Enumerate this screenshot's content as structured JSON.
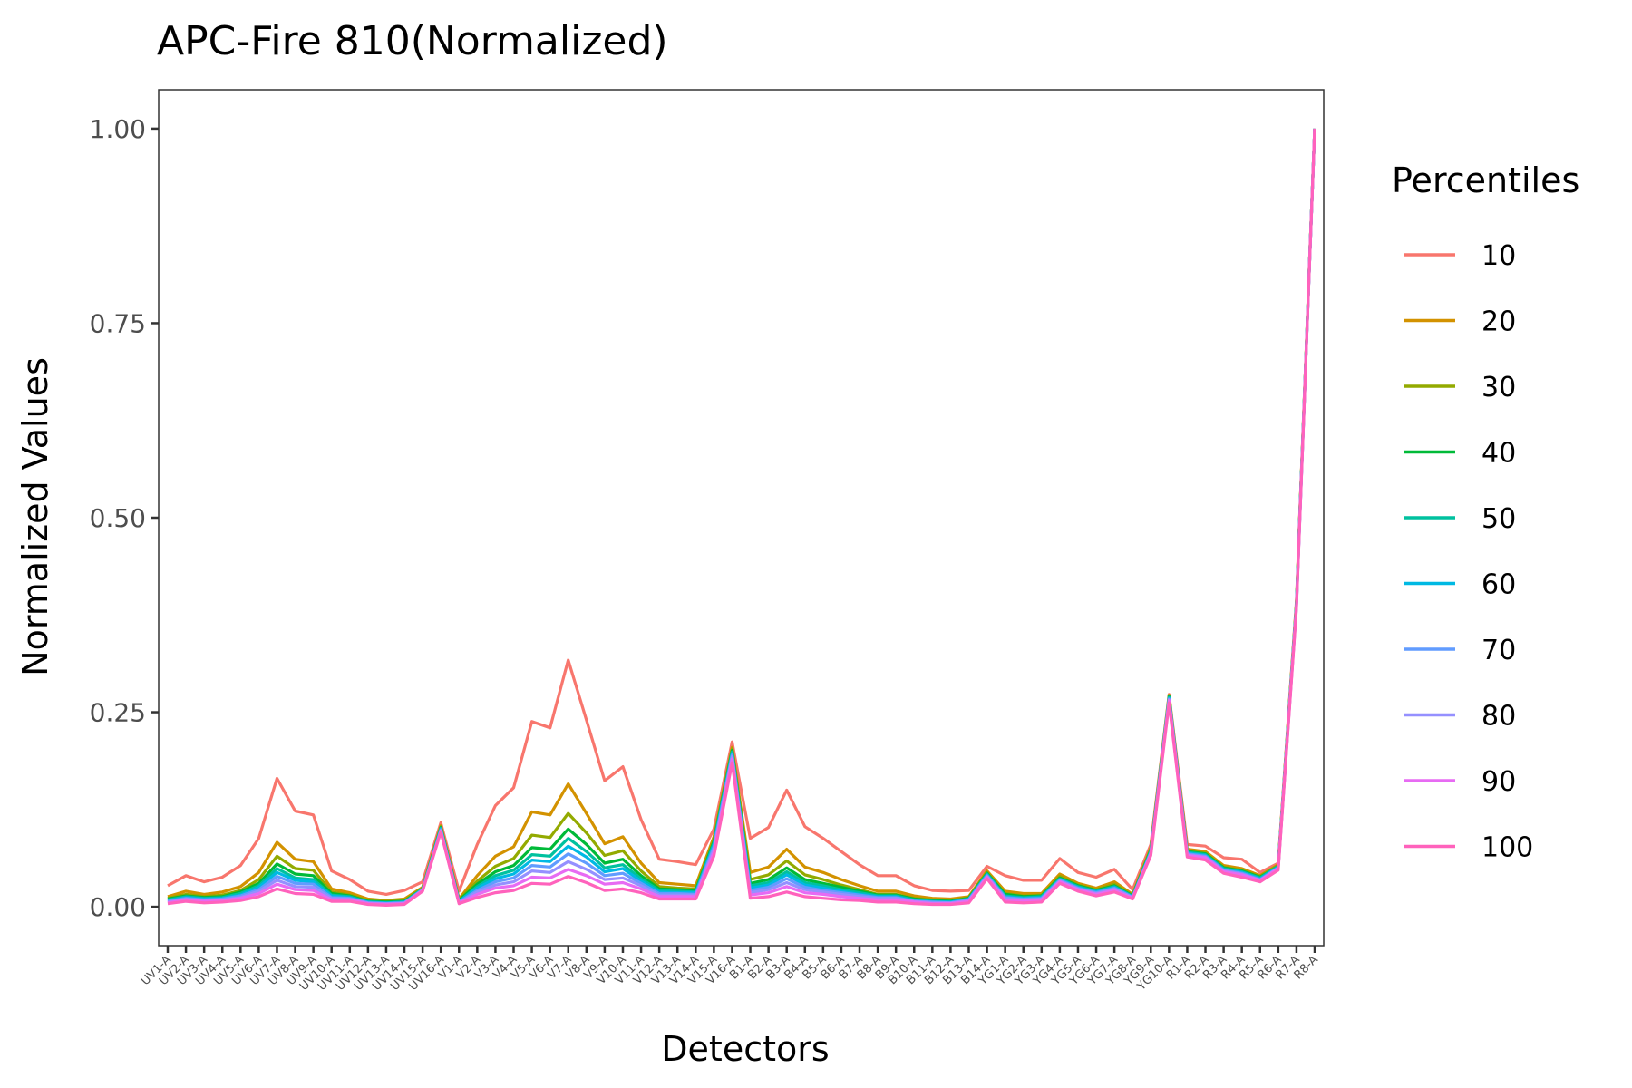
{
  "chart_data": {
    "type": "line",
    "title": "APC-Fire 810(Normalized)",
    "xlabel": "Detectors",
    "ylabel": "Normalized Values",
    "ylim": [
      -0.05,
      1.05
    ],
    "yticks": [
      0,
      0.25,
      0.5,
      0.75,
      1.0
    ],
    "ytick_labels": [
      "0.00",
      "0.25",
      "0.50",
      "0.75",
      "1.00"
    ],
    "grid": false,
    "legend_position": "right",
    "legend_title": "Percentiles",
    "categories": [
      "UV1-A",
      "UV2-A",
      "UV3-A",
      "UV4-A",
      "UV5-A",
      "UV6-A",
      "UV7-A",
      "UV8-A",
      "UV9-A",
      "UV10-A",
      "UV11-A",
      "UV12-A",
      "UV13-A",
      "UV14-A",
      "UV15-A",
      "UV16-A",
      "V1-A",
      "V2-A",
      "V3-A",
      "V4-A",
      "V5-A",
      "V6-A",
      "V7-A",
      "V8-A",
      "V9-A",
      "V10-A",
      "V11-A",
      "V12-A",
      "V13-A",
      "V14-A",
      "V15-A",
      "V16-A",
      "B1-A",
      "B2-A",
      "B3-A",
      "B4-A",
      "B5-A",
      "B6-A",
      "B7-A",
      "B8-A",
      "B9-A",
      "B10-A",
      "B11-A",
      "B12-A",
      "B13-A",
      "B14-A",
      "YG1-A",
      "YG2-A",
      "YG3-A",
      "YG4-A",
      "YG5-A",
      "YG6-A",
      "YG7-A",
      "YG8-A",
      "YG9-A",
      "YG10-A",
      "R1-A",
      "R2-A",
      "R3-A",
      "R4-A",
      "R5-A",
      "R6-A",
      "R7-A",
      "R8-A"
    ],
    "series": [
      {
        "name": "10",
        "color": "#F8766D",
        "values": [
          0.027,
          0.04,
          0.032,
          0.038,
          0.053,
          0.088,
          0.165,
          0.123,
          0.118,
          0.046,
          0.035,
          0.02,
          0.016,
          0.021,
          0.032,
          0.108,
          0.02,
          0.08,
          0.13,
          0.153,
          0.238,
          0.23,
          0.317,
          0.24,
          0.162,
          0.18,
          0.112,
          0.061,
          0.058,
          0.054,
          0.1,
          0.212,
          0.088,
          0.102,
          0.15,
          0.103,
          0.088,
          0.071,
          0.054,
          0.04,
          0.04,
          0.027,
          0.021,
          0.02,
          0.021,
          0.052,
          0.04,
          0.034,
          0.034,
          0.062,
          0.044,
          0.038,
          0.048,
          0.022,
          0.08,
          0.273,
          0.08,
          0.078,
          0.063,
          0.061,
          0.044,
          0.056,
          0.395,
          1.0
        ]
      },
      {
        "name": "20",
        "color": "#D39200",
        "values": [
          0.013,
          0.02,
          0.016,
          0.019,
          0.026,
          0.044,
          0.083,
          0.061,
          0.058,
          0.023,
          0.018,
          0.01,
          0.008,
          0.01,
          0.025,
          0.104,
          0.01,
          0.04,
          0.065,
          0.077,
          0.122,
          0.118,
          0.158,
          0.12,
          0.081,
          0.09,
          0.056,
          0.031,
          0.029,
          0.027,
          0.09,
          0.205,
          0.044,
          0.051,
          0.074,
          0.051,
          0.044,
          0.035,
          0.027,
          0.02,
          0.02,
          0.014,
          0.011,
          0.01,
          0.013,
          0.046,
          0.02,
          0.017,
          0.017,
          0.042,
          0.03,
          0.024,
          0.032,
          0.016,
          0.076,
          0.272,
          0.074,
          0.071,
          0.053,
          0.049,
          0.04,
          0.054,
          0.392,
          1.0
        ]
      },
      {
        "name": "30",
        "color": "#93AA00",
        "values": [
          0.011,
          0.016,
          0.013,
          0.015,
          0.021,
          0.035,
          0.065,
          0.049,
          0.047,
          0.019,
          0.015,
          0.008,
          0.007,
          0.008,
          0.024,
          0.103,
          0.009,
          0.033,
          0.052,
          0.062,
          0.092,
          0.089,
          0.12,
          0.095,
          0.066,
          0.072,
          0.046,
          0.026,
          0.024,
          0.023,
          0.086,
          0.203,
          0.035,
          0.041,
          0.059,
          0.041,
          0.035,
          0.028,
          0.022,
          0.016,
          0.016,
          0.011,
          0.009,
          0.008,
          0.012,
          0.044,
          0.017,
          0.014,
          0.015,
          0.039,
          0.028,
          0.022,
          0.029,
          0.015,
          0.074,
          0.271,
          0.072,
          0.069,
          0.051,
          0.047,
          0.039,
          0.053,
          0.391,
          1.0
        ]
      },
      {
        "name": "40",
        "color": "#00BA38",
        "values": [
          0.01,
          0.014,
          0.012,
          0.013,
          0.019,
          0.03,
          0.055,
          0.042,
          0.04,
          0.017,
          0.014,
          0.007,
          0.006,
          0.007,
          0.023,
          0.102,
          0.008,
          0.029,
          0.045,
          0.053,
          0.076,
          0.074,
          0.1,
          0.08,
          0.056,
          0.061,
          0.04,
          0.023,
          0.022,
          0.021,
          0.084,
          0.201,
          0.03,
          0.035,
          0.05,
          0.035,
          0.03,
          0.025,
          0.02,
          0.015,
          0.015,
          0.01,
          0.008,
          0.007,
          0.011,
          0.043,
          0.016,
          0.013,
          0.014,
          0.037,
          0.027,
          0.021,
          0.027,
          0.014,
          0.073,
          0.27,
          0.071,
          0.068,
          0.05,
          0.046,
          0.038,
          0.052,
          0.39,
          1.0
        ]
      },
      {
        "name": "50",
        "color": "#00C19F",
        "values": [
          0.009,
          0.013,
          0.011,
          0.012,
          0.017,
          0.027,
          0.049,
          0.037,
          0.035,
          0.015,
          0.013,
          0.006,
          0.005,
          0.006,
          0.023,
          0.101,
          0.007,
          0.026,
          0.04,
          0.047,
          0.067,
          0.065,
          0.088,
          0.071,
          0.05,
          0.054,
          0.036,
          0.021,
          0.02,
          0.019,
          0.082,
          0.199,
          0.027,
          0.031,
          0.045,
          0.031,
          0.027,
          0.022,
          0.018,
          0.014,
          0.014,
          0.009,
          0.007,
          0.006,
          0.01,
          0.042,
          0.014,
          0.012,
          0.013,
          0.036,
          0.026,
          0.02,
          0.026,
          0.013,
          0.072,
          0.269,
          0.07,
          0.067,
          0.049,
          0.045,
          0.037,
          0.052,
          0.389,
          1.0
        ]
      },
      {
        "name": "60",
        "color": "#00B9E3",
        "values": [
          0.008,
          0.012,
          0.01,
          0.011,
          0.015,
          0.025,
          0.044,
          0.034,
          0.032,
          0.014,
          0.012,
          0.006,
          0.005,
          0.006,
          0.022,
          0.1,
          0.007,
          0.024,
          0.036,
          0.042,
          0.06,
          0.058,
          0.078,
          0.064,
          0.045,
          0.049,
          0.033,
          0.019,
          0.018,
          0.018,
          0.08,
          0.197,
          0.024,
          0.028,
          0.041,
          0.028,
          0.024,
          0.02,
          0.016,
          0.013,
          0.013,
          0.008,
          0.006,
          0.006,
          0.01,
          0.041,
          0.013,
          0.011,
          0.012,
          0.035,
          0.025,
          0.019,
          0.025,
          0.013,
          0.071,
          0.268,
          0.069,
          0.066,
          0.048,
          0.044,
          0.036,
          0.051,
          0.388,
          1.0
        ]
      },
      {
        "name": "70",
        "color": "#619CFF",
        "values": [
          0.007,
          0.011,
          0.009,
          0.01,
          0.014,
          0.022,
          0.039,
          0.03,
          0.029,
          0.012,
          0.011,
          0.005,
          0.004,
          0.005,
          0.022,
          0.099,
          0.006,
          0.021,
          0.032,
          0.037,
          0.053,
          0.051,
          0.068,
          0.056,
          0.04,
          0.043,
          0.03,
          0.017,
          0.017,
          0.016,
          0.077,
          0.195,
          0.021,
          0.025,
          0.036,
          0.025,
          0.021,
          0.018,
          0.015,
          0.012,
          0.012,
          0.007,
          0.006,
          0.005,
          0.009,
          0.04,
          0.012,
          0.01,
          0.011,
          0.034,
          0.024,
          0.018,
          0.024,
          0.012,
          0.07,
          0.267,
          0.068,
          0.065,
          0.047,
          0.043,
          0.035,
          0.05,
          0.387,
          1.0
        ]
      },
      {
        "name": "80",
        "color": "#9590FF",
        "values": [
          0.006,
          0.01,
          0.008,
          0.009,
          0.012,
          0.02,
          0.034,
          0.026,
          0.025,
          0.011,
          0.01,
          0.005,
          0.004,
          0.005,
          0.021,
          0.098,
          0.005,
          0.019,
          0.028,
          0.032,
          0.046,
          0.044,
          0.058,
          0.048,
          0.035,
          0.037,
          0.027,
          0.015,
          0.015,
          0.015,
          0.074,
          0.193,
          0.018,
          0.022,
          0.031,
          0.022,
          0.019,
          0.016,
          0.013,
          0.011,
          0.011,
          0.007,
          0.005,
          0.005,
          0.008,
          0.039,
          0.011,
          0.009,
          0.01,
          0.033,
          0.023,
          0.017,
          0.023,
          0.012,
          0.069,
          0.266,
          0.067,
          0.064,
          0.046,
          0.042,
          0.034,
          0.05,
          0.386,
          1.0
        ]
      },
      {
        "name": "90",
        "color": "#E76BF3",
        "values": [
          0.005,
          0.009,
          0.007,
          0.008,
          0.011,
          0.017,
          0.029,
          0.022,
          0.021,
          0.009,
          0.009,
          0.004,
          0.003,
          0.004,
          0.021,
          0.097,
          0.005,
          0.016,
          0.024,
          0.027,
          0.038,
          0.037,
          0.048,
          0.04,
          0.029,
          0.031,
          0.023,
          0.013,
          0.013,
          0.013,
          0.07,
          0.19,
          0.015,
          0.018,
          0.026,
          0.018,
          0.016,
          0.013,
          0.011,
          0.009,
          0.009,
          0.006,
          0.004,
          0.004,
          0.007,
          0.038,
          0.009,
          0.008,
          0.009,
          0.032,
          0.022,
          0.016,
          0.021,
          0.011,
          0.068,
          0.265,
          0.066,
          0.063,
          0.045,
          0.041,
          0.034,
          0.049,
          0.385,
          1.0
        ]
      },
      {
        "name": "100",
        "color": "#FF62BC",
        "values": [
          0.004,
          0.007,
          0.005,
          0.006,
          0.008,
          0.013,
          0.023,
          0.017,
          0.016,
          0.007,
          0.007,
          0.003,
          0.002,
          0.003,
          0.02,
          0.096,
          0.004,
          0.012,
          0.018,
          0.021,
          0.03,
          0.029,
          0.039,
          0.031,
          0.021,
          0.023,
          0.018,
          0.01,
          0.01,
          0.01,
          0.065,
          0.185,
          0.011,
          0.013,
          0.019,
          0.013,
          0.011,
          0.009,
          0.008,
          0.006,
          0.006,
          0.004,
          0.003,
          0.003,
          0.005,
          0.036,
          0.006,
          0.005,
          0.006,
          0.03,
          0.02,
          0.014,
          0.019,
          0.01,
          0.066,
          0.262,
          0.064,
          0.06,
          0.043,
          0.038,
          0.032,
          0.047,
          0.383,
          1.0
        ]
      }
    ]
  }
}
